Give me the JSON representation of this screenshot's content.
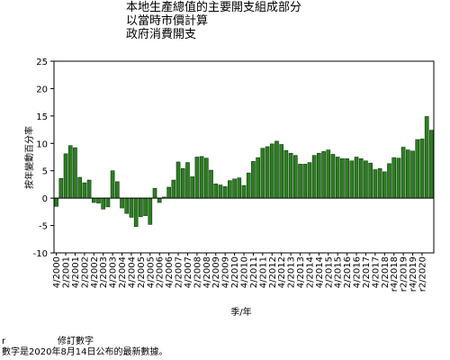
{
  "title_lines": [
    "本地生產總值的主要開支組成部分",
    "以當時市價計算",
    "政府消費開支"
  ],
  "footnotes": {
    "revised_symbol": "r",
    "revised_text": "修訂數字",
    "release_note": "數字是2020年8月14日公布的最新數據。"
  },
  "chart_data": {
    "type": "bar",
    "title": "本地生產總值的主要開支組成部分 以當時市價計算 政府消費開支",
    "xlabel": "季/年",
    "ylabel": "按年變動百分率",
    "ylim": [
      -10,
      25
    ],
    "yticks": [
      -10,
      -5,
      0,
      5,
      10,
      15,
      20,
      25
    ],
    "grid": false,
    "bar_color": "#2e7d22",
    "bar_edge_color": "#0b3d0b",
    "x_tick_labels": [
      "4/2000",
      "2/2001",
      "4/2001",
      "2/2002",
      "4/2002",
      "2/2003",
      "4/2003",
      "2/2004",
      "4/2004",
      "2/2005",
      "4/2005",
      "2/2006",
      "4/2006",
      "2/2007",
      "4/2007",
      "2/2008",
      "4/2008",
      "2/2009",
      "4/2009",
      "2/2010",
      "4/2010",
      "2/2011",
      "4/2011",
      "2/2012",
      "4/2012",
      "2/2013",
      "4/2013",
      "2/2014",
      "4/2014",
      "2/2015",
      "4/2015",
      "2/2016",
      "4/2016",
      "2/2017",
      "4/2017",
      "2/2018",
      "r4/2018",
      "r2/2019",
      "r4/2019",
      "r2/2020"
    ],
    "values": [
      -1.5,
      3.6,
      8.1,
      9.6,
      9.2,
      3.8,
      2.8,
      3.3,
      -0.8,
      -0.9,
      -2.0,
      -1.6,
      5.0,
      3.0,
      -1.8,
      -2.8,
      -3.5,
      -5.2,
      -3.4,
      -3.2,
      -4.8,
      1.8,
      -0.8,
      0.2,
      2.0,
      3.3,
      6.6,
      5.4,
      6.5,
      3.9,
      7.5,
      7.6,
      7.3,
      5.1,
      2.6,
      2.4,
      2.1,
      3.2,
      3.5,
      3.7,
      2.3,
      4.6,
      6.7,
      7.4,
      9.1,
      9.4,
      9.9,
      10.4,
      9.8,
      8.7,
      8.2,
      7.8,
      6.2,
      6.2,
      6.5,
      7.8,
      8.2,
      8.5,
      8.8,
      8.0,
      7.5,
      7.2,
      7.2,
      6.8,
      7.5,
      7.2,
      6.8,
      6.4,
      5.2,
      5.4,
      4.8,
      6.3,
      7.4,
      7.3,
      9.3,
      8.8,
      8.6,
      10.7,
      10.8,
      14.9,
      12.4
    ]
  }
}
